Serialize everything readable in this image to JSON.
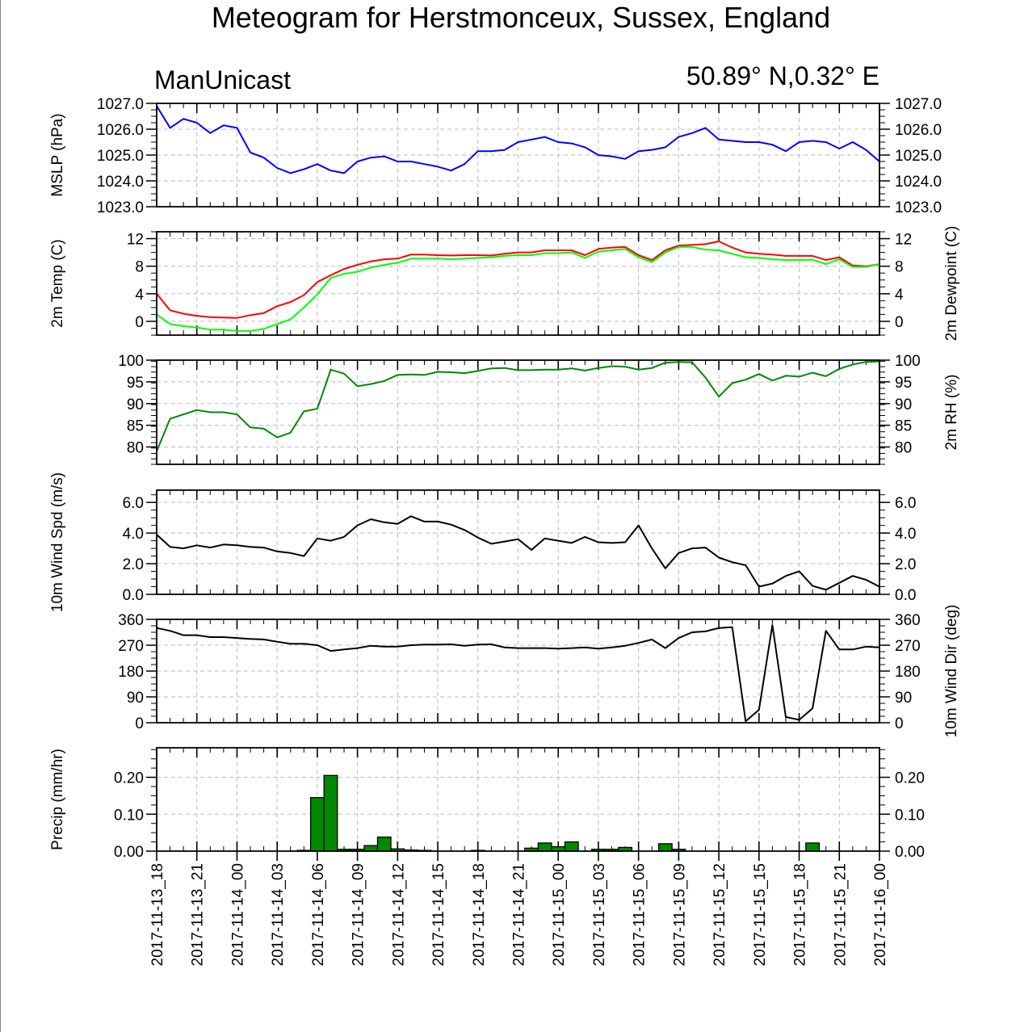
{
  "title": "Meteogram for Herstmonceux, Sussex, England",
  "model": "ManUnicast",
  "location": "50.89° N,0.32° E",
  "time_labels": [
    "2017-11-13_18",
    "2017-11-13_21",
    "2017-11-14_00",
    "2017-11-14_03",
    "2017-11-14_06",
    "2017-11-14_09",
    "2017-11-14_12",
    "2017-11-14_15",
    "2017-11-14_18",
    "2017-11-14_21",
    "2017-11-15_00",
    "2017-11-15_03",
    "2017-11-15_06",
    "2017-11-15_09",
    "2017-11-15_12",
    "2017-11-15_15",
    "2017-11-15_18",
    "2017-11-15_21",
    "2017-11-16_00"
  ],
  "chart_data": [
    {
      "type": "line",
      "ylabel_left": "MSLP (hPa)",
      "ylabel_right": "",
      "ylim": [
        1023,
        1027
      ],
      "yticks": [
        1023,
        1024,
        1025,
        1026,
        1027
      ],
      "ytick_labels": [
        "1023.0",
        "1024.0",
        "1025.0",
        "1026.0",
        "1027.0"
      ],
      "ytick_labels_right": [
        "1023.0",
        "1024.0",
        "1025.0",
        "1026.0",
        "1027.0"
      ],
      "grid": true,
      "series": [
        {
          "color": "#0000ff",
          "values": [
            1026.9,
            1026.05,
            1026.4,
            1026.25,
            1025.85,
            1026.15,
            1026.05,
            1025.1,
            1024.9,
            1024.5,
            1024.3,
            1024.45,
            1024.65,
            1024.4,
            1024.3,
            1024.75,
            1024.9,
            1024.95,
            1024.75,
            1024.75,
            1024.65,
            1024.55,
            1024.4,
            1024.65,
            1025.15,
            1025.15,
            1025.2,
            1025.5,
            1025.6,
            1025.7,
            1025.5,
            1025.45,
            1025.3,
            1025.0,
            1024.95,
            1024.85,
            1025.15,
            1025.2,
            1025.3,
            1025.7,
            1025.85,
            1026.05,
            1025.6,
            1025.55,
            1025.5,
            1025.5,
            1025.4,
            1025.15,
            1025.5,
            1025.55,
            1025.5,
            1025.25,
            1025.5,
            1025.2,
            1024.75
          ]
        }
      ]
    },
    {
      "type": "line",
      "ylabel_left": "2m Temp (C)",
      "ylabel_right": "2m Dewpoint (C)",
      "ylim": [
        -2,
        13
      ],
      "yticks": [
        0,
        4,
        8,
        12
      ],
      "ytick_labels": [
        "0",
        "4",
        "8",
        "12"
      ],
      "ytick_labels_right": [
        "0",
        "4",
        "8",
        "12"
      ],
      "grid": true,
      "series": [
        {
          "color": "#ff0000",
          "values": [
            4.0,
            1.6,
            1.1,
            0.8,
            0.6,
            0.55,
            0.5,
            0.9,
            1.2,
            2.2,
            2.8,
            3.8,
            5.7,
            6.7,
            7.6,
            8.2,
            8.7,
            9.0,
            9.1,
            9.7,
            9.7,
            9.6,
            9.55,
            9.6,
            9.6,
            9.55,
            9.8,
            10.0,
            10.0,
            10.3,
            10.3,
            10.3,
            9.6,
            10.5,
            10.7,
            10.8,
            9.6,
            8.9,
            10.3,
            11.0,
            11.1,
            11.2,
            11.6,
            10.7,
            10.0,
            9.8,
            9.7,
            9.5,
            9.5,
            9.5,
            8.9,
            9.3,
            8.1,
            8.0,
            8.3
          ]
        },
        {
          "color": "#00ff00",
          "values": [
            1.0,
            -0.4,
            -0.7,
            -0.9,
            -1.2,
            -1.2,
            -1.4,
            -1.4,
            -1.1,
            -0.4,
            0.3,
            2.0,
            3.9,
            6.3,
            6.9,
            7.2,
            7.8,
            8.2,
            8.5,
            9.1,
            9.1,
            9.1,
            9.0,
            9.1,
            9.2,
            9.3,
            9.5,
            9.6,
            9.6,
            9.9,
            9.9,
            10.0,
            9.2,
            10.1,
            10.3,
            10.5,
            9.3,
            8.6,
            10.0,
            10.8,
            10.8,
            10.4,
            10.3,
            9.8,
            9.3,
            9.2,
            9.0,
            8.9,
            8.9,
            8.95,
            8.3,
            9.0,
            7.9,
            7.9,
            8.3
          ]
        }
      ]
    },
    {
      "type": "line",
      "ylabel_left": "",
      "ylabel_right": "2m RH (%)",
      "ylim": [
        76,
        100
      ],
      "yticks": [
        80,
        85,
        90,
        95,
        100
      ],
      "ytick_labels": [
        "80",
        "85",
        "90",
        "95",
        "100"
      ],
      "ytick_labels_right": [
        "80",
        "85",
        "90",
        "95",
        "100"
      ],
      "grid": true,
      "series": [
        {
          "color": "#008800",
          "values": [
            79.0,
            86.5,
            87.5,
            88.5,
            88.0,
            88.0,
            87.5,
            84.5,
            84.2,
            82.2,
            83.3,
            88.2,
            88.8,
            97.8,
            96.9,
            94.0,
            94.5,
            95.2,
            96.6,
            96.7,
            96.6,
            97.3,
            97.2,
            97.0,
            97.5,
            98.1,
            98.2,
            97.7,
            97.7,
            97.8,
            97.8,
            98.1,
            97.6,
            98.2,
            98.6,
            98.5,
            97.8,
            98.2,
            99.4,
            99.6,
            99.5,
            96.0,
            91.6,
            94.7,
            95.5,
            96.8,
            95.3,
            96.4,
            96.2,
            97.1,
            96.3,
            98.0,
            99.0,
            99.6,
            99.7
          ]
        }
      ]
    },
    {
      "type": "line",
      "ylabel_left": "10m Wind Spd (m/s)",
      "ylabel_right": "",
      "ylim": [
        0,
        6.8
      ],
      "yticks": [
        0,
        2,
        4,
        6
      ],
      "ytick_labels": [
        "0.0",
        "2.0",
        "4.0",
        "6.0"
      ],
      "ytick_labels_right": [
        "0.0",
        "2.0",
        "4.0",
        "6.0"
      ],
      "grid": true,
      "series": [
        {
          "color": "#000000",
          "values": [
            3.9,
            3.1,
            3.0,
            3.2,
            3.05,
            3.25,
            3.2,
            3.1,
            3.05,
            2.8,
            2.7,
            2.5,
            3.65,
            3.5,
            3.75,
            4.5,
            4.9,
            4.7,
            4.6,
            5.1,
            4.75,
            4.75,
            4.55,
            4.2,
            3.7,
            3.3,
            3.45,
            3.6,
            2.9,
            3.65,
            3.5,
            3.35,
            3.75,
            3.4,
            3.35,
            3.4,
            4.5,
            3.0,
            1.7,
            2.7,
            3.0,
            3.05,
            2.4,
            2.1,
            1.9,
            0.5,
            0.7,
            1.2,
            1.5,
            0.55,
            0.3,
            0.75,
            1.2,
            0.95,
            0.5
          ]
        }
      ]
    },
    {
      "type": "line",
      "ylabel_left": "",
      "ylabel_right": "10m Wind Dir (deg)",
      "ylim": [
        0,
        360
      ],
      "yticks": [
        0,
        90,
        180,
        270,
        360
      ],
      "ytick_labels": [
        "0",
        "90",
        "180",
        "270",
        "360"
      ],
      "ytick_labels_right": [
        "0",
        "90",
        "180",
        "270",
        "360"
      ],
      "grid": true,
      "series": [
        {
          "color": "#000000",
          "values": [
            330,
            320,
            305,
            305,
            298,
            298,
            295,
            292,
            290,
            282,
            275,
            275,
            270,
            250,
            255,
            260,
            268,
            265,
            265,
            270,
            272,
            272,
            273,
            268,
            272,
            273,
            262,
            260,
            260,
            260,
            258,
            260,
            262,
            258,
            262,
            268,
            278,
            290,
            260,
            295,
            315,
            318,
            330,
            333,
            5,
            45,
            340,
            20,
            10,
            50,
            320,
            255,
            255,
            265,
            262
          ]
        }
      ]
    },
    {
      "type": "bar",
      "ylabel_left": "Precip (mm/hr)",
      "ylabel_right": "",
      "ylim": [
        0,
        0.28
      ],
      "yticks": [
        0,
        0.1,
        0.2
      ],
      "ytick_labels": [
        "0.00",
        "0.10",
        "0.20"
      ],
      "ytick_labels_right": [
        "0.00",
        "0.10",
        "0.20"
      ],
      "grid": true,
      "color": "#008800",
      "values": [
        0,
        0,
        0,
        0,
        0,
        0,
        0,
        0,
        0,
        0,
        0,
        0.002,
        0.145,
        0.205,
        0.005,
        0.005,
        0.015,
        0.038,
        0.006,
        0.003,
        0.002,
        0,
        0,
        0,
        0.002,
        0,
        0,
        0,
        0.008,
        0.022,
        0.012,
        0.025,
        0,
        0.005,
        0.005,
        0.01,
        0,
        0,
        0.02,
        0.005,
        0,
        0,
        0,
        0,
        0,
        0,
        0,
        0,
        0,
        0.022,
        0,
        0,
        0,
        0,
        0
      ]
    }
  ]
}
